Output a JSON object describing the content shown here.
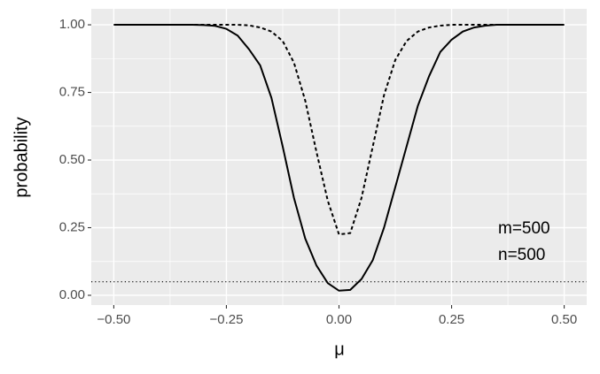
{
  "chart_data": {
    "type": "line",
    "x_label": "μ",
    "y_label": "probability",
    "x": [
      -0.5,
      -0.475,
      -0.45,
      -0.425,
      -0.4,
      -0.375,
      -0.35,
      -0.325,
      -0.3,
      -0.275,
      -0.25,
      -0.225,
      -0.2,
      -0.175,
      -0.15,
      -0.125,
      -0.1,
      -0.075,
      -0.05,
      -0.025,
      0,
      0.025,
      0.05,
      0.075,
      0.1,
      0.125,
      0.15,
      0.175,
      0.2,
      0.225,
      0.25,
      0.275,
      0.3,
      0.325,
      0.35,
      0.375,
      0.4,
      0.425,
      0.45,
      0.475,
      0.5
    ],
    "series": [
      {
        "color": "#000000",
        "linestyle": "solid",
        "values": [
          1,
          1,
          1,
          1,
          1,
          1,
          1,
          1,
          0.999,
          0.996,
          0.985,
          0.96,
          0.91,
          0.85,
          0.73,
          0.55,
          0.36,
          0.21,
          0.11,
          0.045,
          0.017,
          0.02,
          0.06,
          0.13,
          0.25,
          0.4,
          0.55,
          0.7,
          0.81,
          0.9,
          0.945,
          0.975,
          0.99,
          0.997,
          1,
          1,
          1,
          1,
          1,
          1,
          1
        ]
      },
      {
        "color": "#000000",
        "linestyle": "dashed",
        "values": [
          1,
          1,
          1,
          1,
          1,
          1,
          1,
          1,
          1,
          1,
          1,
          1,
          0.998,
          0.99,
          0.975,
          0.94,
          0.86,
          0.72,
          0.53,
          0.35,
          0.225,
          0.23,
          0.36,
          0.55,
          0.74,
          0.87,
          0.94,
          0.975,
          0.99,
          0.997,
          1,
          1,
          1,
          1,
          1,
          1,
          1,
          1,
          1,
          1,
          1
        ]
      }
    ],
    "hline": 0.05,
    "annotations": [
      "m=500",
      "n=500"
    ],
    "xlim": [
      -0.55,
      0.55
    ],
    "ylim": [
      -0.036,
      1.059
    ],
    "xticks": [
      {
        "value": -0.5,
        "label": "−0.50"
      },
      {
        "value": -0.25,
        "label": "−0.25"
      },
      {
        "value": 0,
        "label": "0.00"
      },
      {
        "value": 0.25,
        "label": "0.25"
      },
      {
        "value": 0.5,
        "label": "0.50"
      }
    ],
    "yticks": [
      {
        "value": 0,
        "label": "0.00"
      },
      {
        "value": 0.25,
        "label": "0.25"
      },
      {
        "value": 0.5,
        "label": "0.50"
      },
      {
        "value": 0.75,
        "label": "0.75"
      },
      {
        "value": 1,
        "label": "1.00"
      }
    ],
    "grid": true,
    "background": "#ebebeb"
  }
}
